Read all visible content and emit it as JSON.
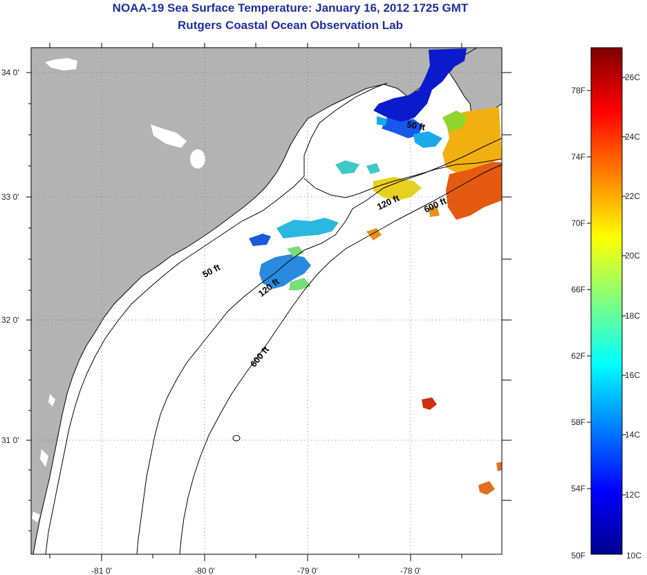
{
  "title": "NOAA-19 Sea Surface Temperature:  January 16, 2012 1725 GMT",
  "subtitle": "Rutgers Coastal Ocean Observation Lab",
  "map": {
    "lon_ticks": [
      "-81 0'",
      "-80 0'",
      "-79 0'",
      "-78 0'"
    ],
    "lat_ticks": [
      "34 0'",
      "33 0'",
      "32 0'",
      "31 0'"
    ],
    "contours": [
      "50 ft",
      "50 ft",
      "120 ft",
      "120 ft",
      "600 ft",
      "600 ft"
    ],
    "colors": {
      "land": "#b3b3b3",
      "water": "#ffffff",
      "coast": "#000000",
      "title": "#1f2f9f"
    }
  },
  "colorbar": {
    "f_labels": [
      "78F",
      "74F",
      "70F",
      "66F",
      "62F",
      "58F",
      "54F",
      "50F"
    ],
    "c_labels": [
      "26C",
      "24C",
      "22C",
      "20C",
      "18C",
      "16C",
      "14C",
      "12C",
      "10C"
    ]
  }
}
